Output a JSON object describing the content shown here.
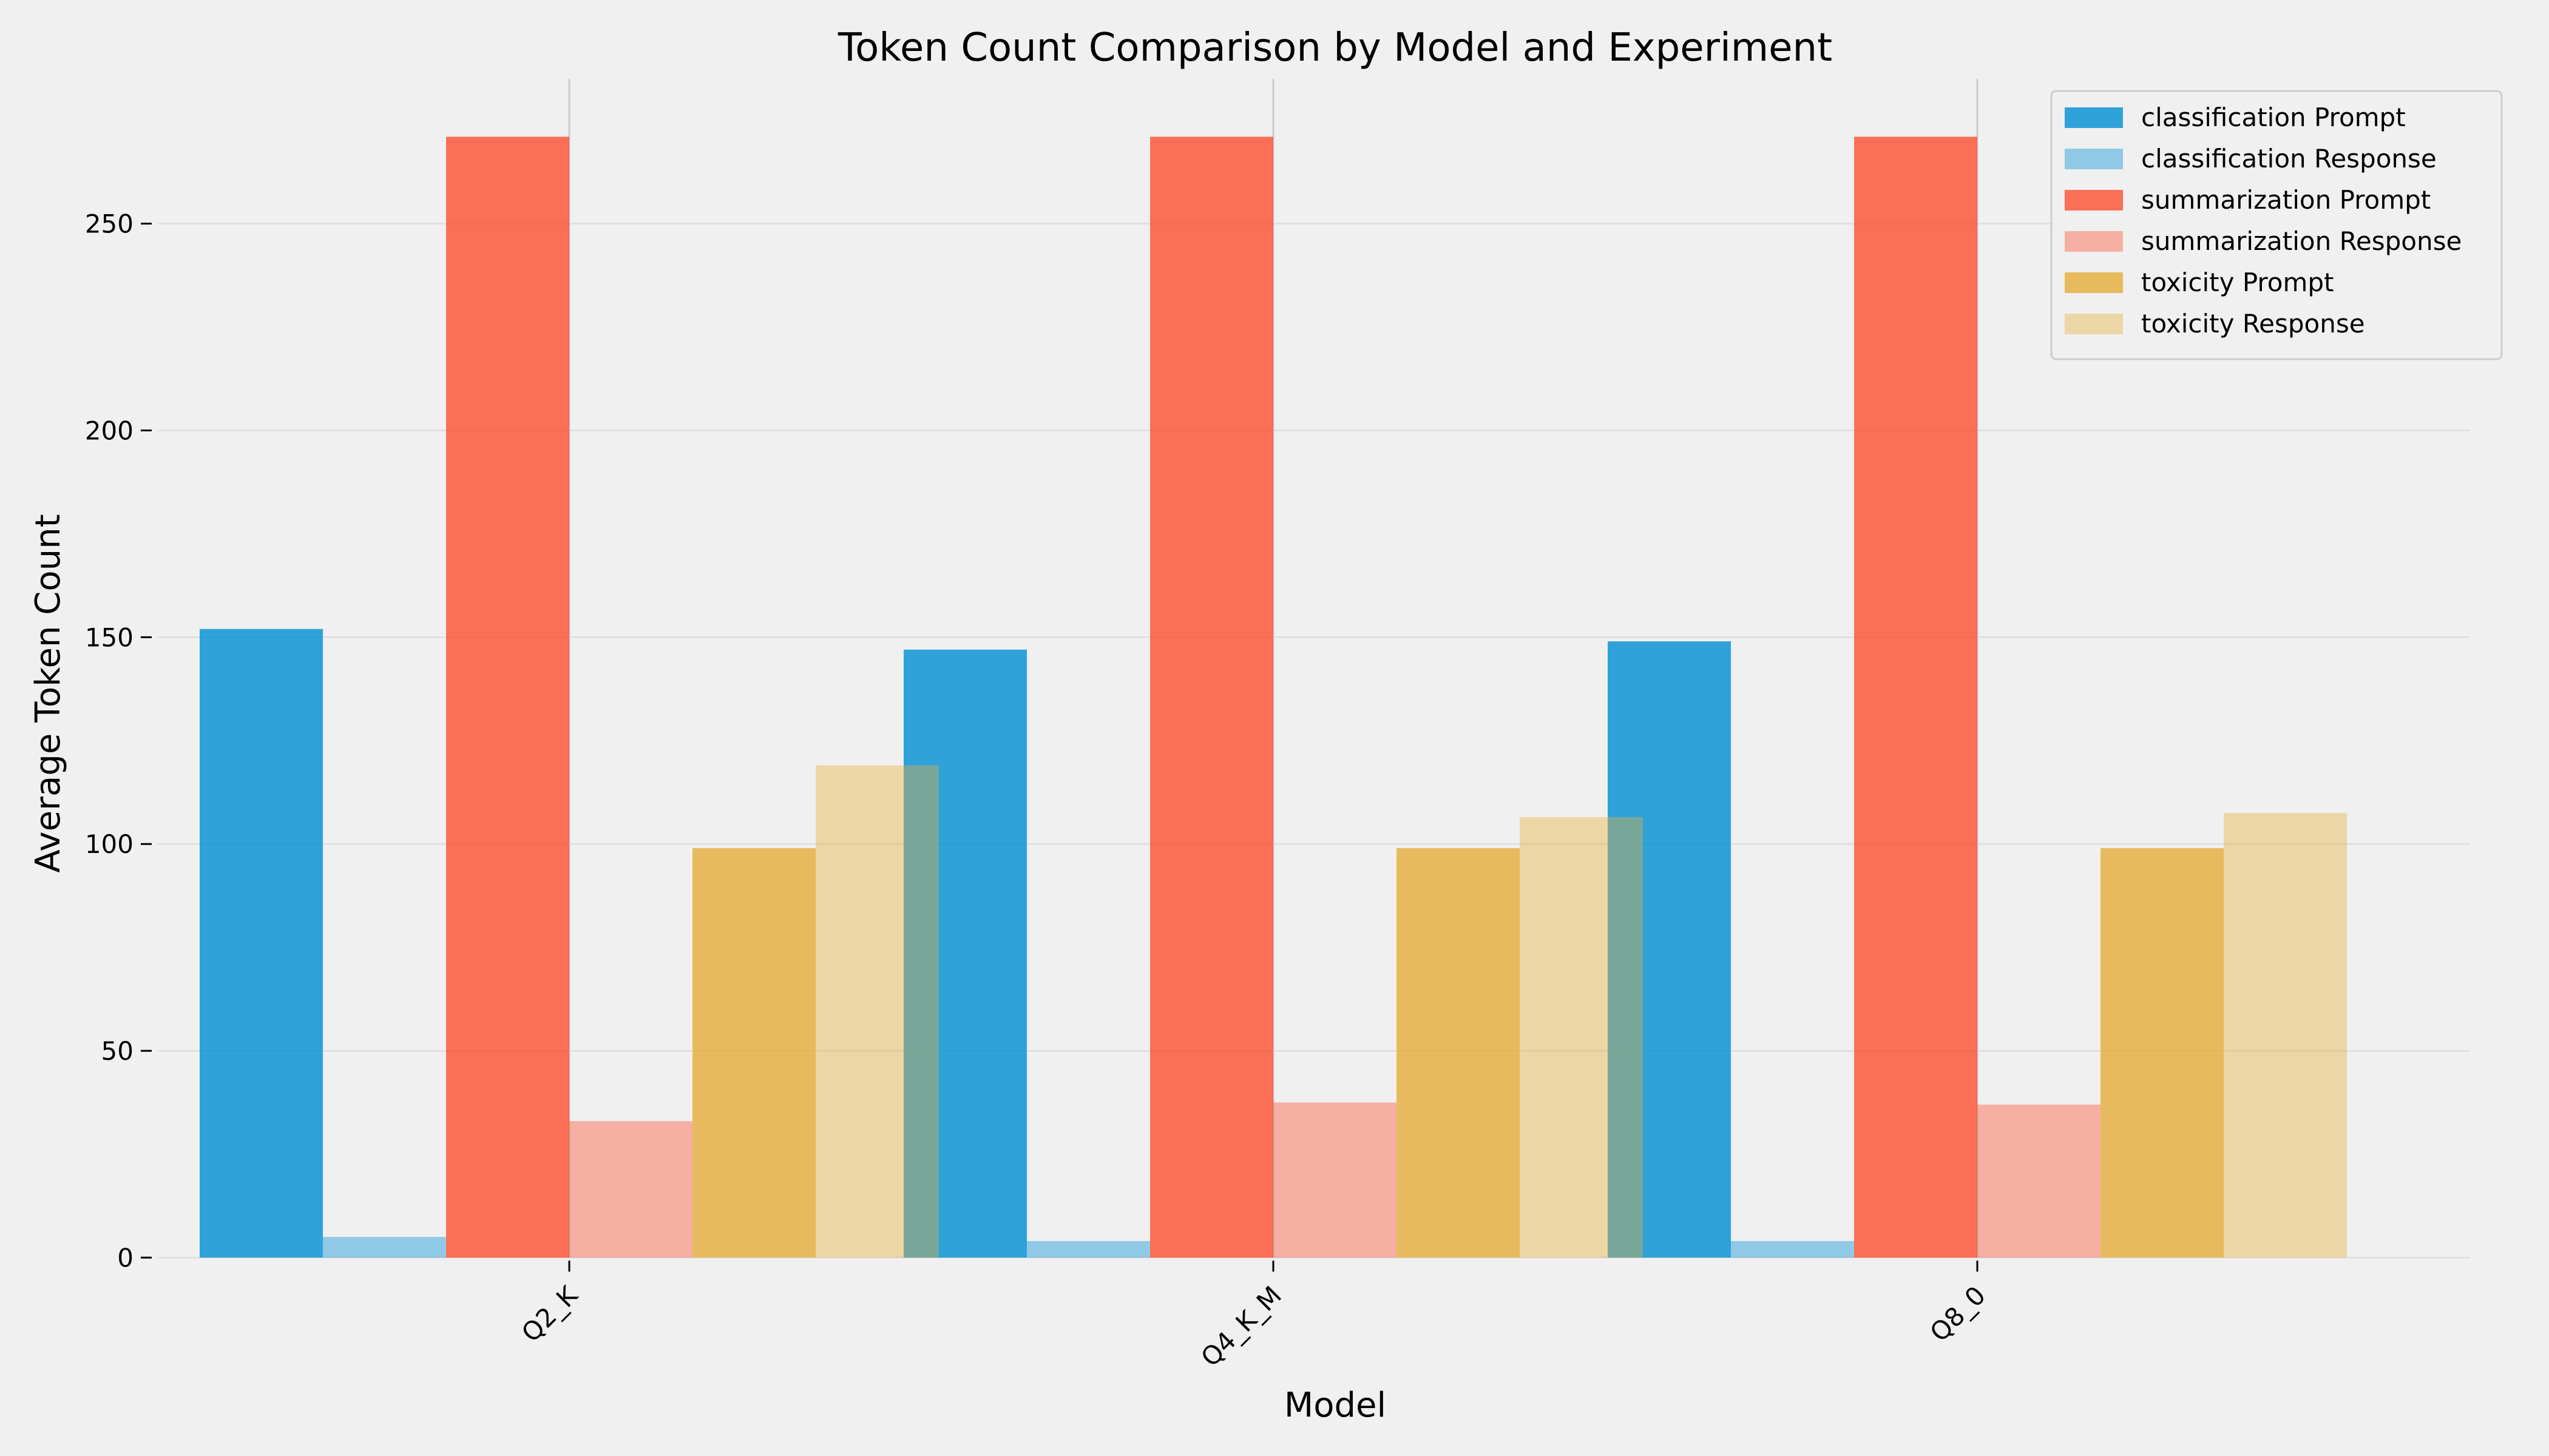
{
  "chart_data": {
    "type": "bar",
    "title": "Token Count Comparison by Model and Experiment",
    "xlabel": "Model",
    "ylabel": "Average Token Count",
    "categories": [
      "Q2_K",
      "Q4_K_M",
      "Q8_0"
    ],
    "ylim": [
      0,
      285
    ],
    "yticks": [
      0,
      50,
      100,
      150,
      200,
      250
    ],
    "grid": true,
    "legend_position": "top-right",
    "series": [
      {
        "name": "classification Prompt",
        "color": "#008fd5",
        "opacity": 0.8,
        "values": [
          152,
          147,
          149
        ]
      },
      {
        "name": "classification Response",
        "color": "#008fd5",
        "opacity": 0.4,
        "values": [
          5,
          4,
          4
        ]
      },
      {
        "name": "summarization Prompt",
        "color": "#fc4f30",
        "opacity": 0.8,
        "values": [
          271,
          271,
          271
        ]
      },
      {
        "name": "summarization Response",
        "color": "#fc4f30",
        "opacity": 0.4,
        "values": [
          33,
          37.5,
          37
        ]
      },
      {
        "name": "toxicity Prompt",
        "color": "#e5ae38",
        "opacity": 0.8,
        "values": [
          99,
          99,
          99
        ]
      },
      {
        "name": "toxicity Response",
        "color": "#e5ae38",
        "opacity": 0.4,
        "values": [
          119,
          106.5,
          107.5
        ]
      }
    ]
  }
}
